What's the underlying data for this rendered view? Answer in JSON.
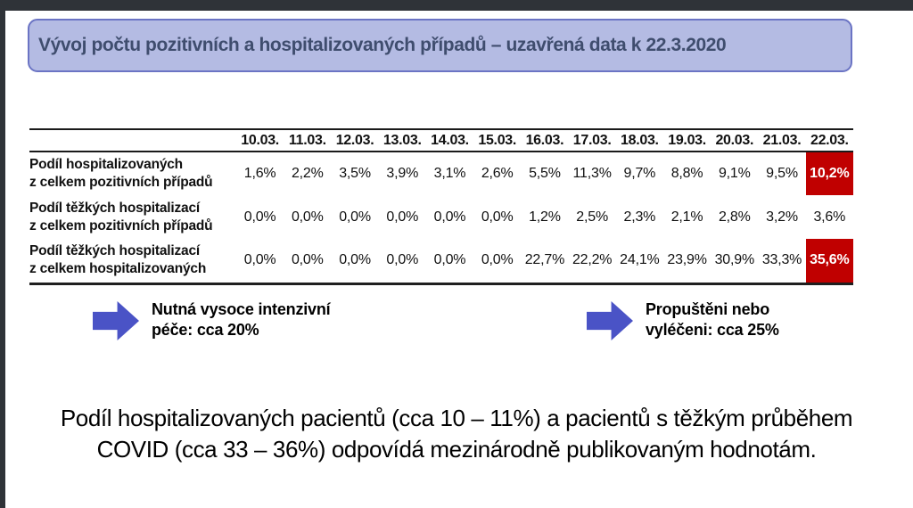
{
  "slide": {
    "title": "Vývoj počtu pozitivních a hospitalizovaných případů – uzavřená data k 22.3.2020"
  },
  "table": {
    "date_columns": [
      "10.03.",
      "11.03.",
      "12.03.",
      "13.03.",
      "14.03.",
      "15.03.",
      "16.03.",
      "17.03.",
      "18.03.",
      "19.03.",
      "20.03.",
      "21.03.",
      "22.03."
    ],
    "rows": [
      {
        "label_line1": "Podíl hospitalizovaných",
        "label_line2": "z celkem pozitivních případů",
        "values": [
          "1,6%",
          "2,2%",
          "3,5%",
          "3,9%",
          "3,1%",
          "2,6%",
          "5,5%",
          "11,3%",
          "9,7%",
          "8,8%",
          "9,1%",
          "9,5%",
          "10,2%"
        ],
        "highlight_last": true
      },
      {
        "label_line1": "Podíl těžkých hospitalizací",
        "label_line2": "z celkem pozitivních případů",
        "values": [
          "0,0%",
          "0,0%",
          "0,0%",
          "0,0%",
          "0,0%",
          "0,0%",
          "1,2%",
          "2,5%",
          "2,3%",
          "2,1%",
          "2,8%",
          "3,2%",
          "3,6%"
        ],
        "highlight_last": false
      },
      {
        "label_line1": "Podíl těžkých hospitalizací",
        "label_line2": "z celkem hospitalizovaných",
        "values": [
          "0,0%",
          "0,0%",
          "0,0%",
          "0,0%",
          "0,0%",
          "0,0%",
          "22,7%",
          "22,2%",
          "24,1%",
          "23,9%",
          "30,9%",
          "33,3%",
          "35,6%"
        ],
        "highlight_last": true
      }
    ]
  },
  "callouts": [
    {
      "line1": "Nutná vysoce intenzivní",
      "line2": "péče: cca 20%"
    },
    {
      "line1": "Propuštěni nebo",
      "line2": "vyléčeni: cca 25%"
    }
  ],
  "footer": {
    "line1": "Podíl hospitalizovaných pacientů (cca 10 – 11%) a pacientů s těžkým průběhem",
    "line2": "COVID (cca 33 – 36%) odpovídá mezinárodně publikovaným hodnotám."
  },
  "colors": {
    "chrome_bar": "#2F3338",
    "title_bg": "#B4BBE3",
    "title_border": "#6B74C4",
    "title_text": "#3F4D6E",
    "highlight_bg": "#C00000",
    "highlight_text": "#FFFFFF",
    "arrow": "#4A53C6"
  }
}
